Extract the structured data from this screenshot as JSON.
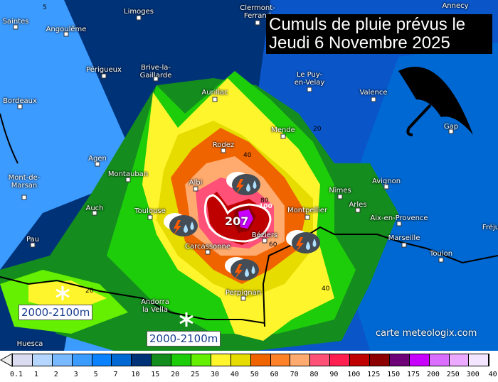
{
  "title": {
    "line1": "Cumuls de pluie prévus le",
    "line2": "Jeudi 6 Novembre 2025"
  },
  "watermark": "carte meteologix.com",
  "max_value": "207",
  "isolines": [
    "5",
    "40",
    "80",
    "100",
    "60",
    "20",
    "20",
    "40",
    "20",
    "20"
  ],
  "altitude_labels": [
    "2000-2100m",
    "2000-2100m"
  ],
  "cities": [
    "Saintes",
    "Angoulême",
    "Limoges",
    "Clermont-\nFerrand",
    "Annecy",
    "Périgueux",
    "Brive-la-\nGaillarde",
    "Bordeaux",
    "Aurillac",
    "Le Puy-\nen-Velay",
    "Valence",
    "Mende",
    "Gap",
    "Rodez",
    "Agen",
    "Montauban",
    "Albi",
    "Avignon",
    "Nîmes",
    "Mont-de-\nMarsan",
    "Arles",
    "Auch",
    "Toulouse",
    "Montpellier",
    "Aix-en-Provence",
    "Fréju",
    "Pau",
    "Béziers",
    "Carcassonne",
    "Marseille",
    "Toulon",
    "Perpignan",
    "Andorra\nla Vella",
    "Huesca"
  ],
  "icons": {
    "weather": "thunderstorm-rain-icon",
    "snow": "snowflake-icon",
    "umbrella": "umbrella-icon"
  },
  "legend": {
    "unit_hint": "mm",
    "labels": [
      "0.1",
      "1",
      "2",
      "3",
      "5",
      "7",
      "10",
      "15",
      "20",
      "25",
      "30",
      "40",
      "50",
      "60",
      "70",
      "80",
      "90",
      "100",
      "125",
      "150",
      "175",
      "200",
      "250",
      "300",
      "40"
    ],
    "colors": [
      "#dcdcf0",
      "#b4d6ff",
      "#78b9ff",
      "#3c9bff",
      "#0a82ff",
      "#0068d2",
      "#003278",
      "#148c1e",
      "#1ecd0a",
      "#64f000",
      "#fff52d",
      "#e6dc00",
      "#f06400",
      "#ff8228",
      "#ffaa6e",
      "#ff5078",
      "#ff1e50",
      "#be0000",
      "#8c0000",
      "#6e0078",
      "#c800ff",
      "#dc6eff",
      "#ebaaff",
      "#f5e6ff"
    ]
  }
}
